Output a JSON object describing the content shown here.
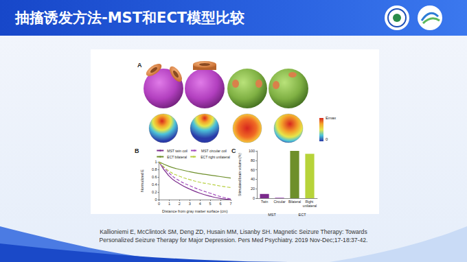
{
  "slide": {
    "title": "抽搐诱发方法-MST和ECT模型比较",
    "panel_labels": [
      "A",
      "B",
      "C"
    ],
    "colorbar": {
      "top_label": "Emax",
      "bottom_label": "0"
    },
    "citation": [
      "Kallioniemi E, McClintock SM, Deng ZD, Husain MM, Lisanby SH. Magnetic Seizure Therapy: Towards",
      "Personalized Seizure Therapy for Major Depression. Pers Med Psychiatry. 2019 Nov-Dec;17-18:37-42."
    ]
  },
  "chart_data": [
    {
      "type": "line",
      "x_label": "Distance from gray matter surface (cm)",
      "y_label": "Normalized E",
      "x": [
        0,
        1,
        2,
        3,
        4,
        5,
        6,
        7
      ],
      "series": [
        {
          "name": "MST twin coil",
          "color": "#7b2a8c",
          "line_style": "solid",
          "values": [
            1,
            0.62,
            0.42,
            0.28,
            0.17,
            0.09,
            0.03,
            0
          ]
        },
        {
          "name": "MST circular coil",
          "color": "#a24cbc",
          "line_style": "dashed",
          "values": [
            1,
            0.7,
            0.5,
            0.37,
            0.26,
            0.17,
            0.08,
            0.02
          ]
        },
        {
          "name": "ECT bilateral",
          "color": "#6e8f2b",
          "line_style": "solid",
          "values": [
            1,
            0.88,
            0.8,
            0.74,
            0.69,
            0.65,
            0.61,
            0.57
          ]
        },
        {
          "name": "ECT right unilateral",
          "color": "#b7cf3f",
          "line_style": "dashed",
          "values": [
            1,
            0.75,
            0.62,
            0.53,
            0.46,
            0.41,
            0.36,
            0.32
          ]
        }
      ],
      "xlim": [
        0,
        7
      ],
      "xticks": [
        0,
        1,
        2,
        3,
        4,
        5,
        6,
        7
      ],
      "ylim": [
        0,
        1
      ],
      "yticks": [
        0,
        0.2,
        0.4,
        0.6,
        0.8,
        1
      ],
      "legend": "top right",
      "grid": false
    },
    {
      "type": "bar",
      "y_label": "Stimulated brain volume (%)",
      "categories": [
        "Twin",
        "Circular",
        "Bilateral",
        "Right unilateral"
      ],
      "groups": [
        "MST",
        "MST",
        "ECT",
        "ECT"
      ],
      "values": [
        9,
        1,
        100,
        94
      ],
      "colors": [
        "#7b2a8c",
        "#a24cbc",
        "#6e8f2b",
        "#b7d33a"
      ],
      "ylim": [
        0,
        100
      ],
      "yticks": [
        0,
        20,
        40,
        60,
        80,
        100
      ],
      "grid": false
    }
  ]
}
